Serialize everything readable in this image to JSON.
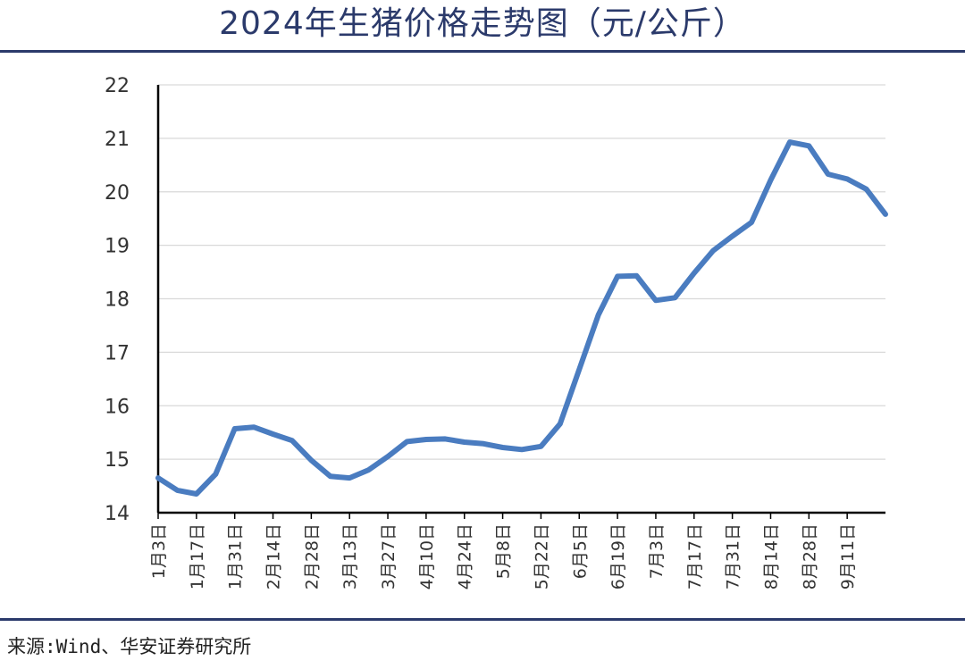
{
  "header": {
    "title": "2024年生猪价格走势图（元/公斤）"
  },
  "footer": {
    "source": "来源:Wind、华安证券研究所"
  },
  "chart_data": {
    "type": "line",
    "title": "2024年生猪价格走势图（元/公斤）",
    "xlabel": "",
    "ylabel": "",
    "ylim": [
      14,
      22
    ],
    "yticks": [
      14,
      15,
      16,
      17,
      18,
      19,
      20,
      21,
      22
    ],
    "grid": true,
    "legend": "none",
    "line_color": "#4a7cc0",
    "x_tick_labels": [
      "1月3日",
      "1月17日",
      "1月31日",
      "2月14日",
      "2月28日",
      "3月13日",
      "3月27日",
      "4月10日",
      "4月24日",
      "5月8日",
      "5月22日",
      "6月5日",
      "6月19日",
      "7月3日",
      "7月17日",
      "7月31日",
      "8月14日",
      "8月28日",
      "9月11日"
    ],
    "series": [
      {
        "values": [
          14.65,
          14.42,
          14.35,
          14.72,
          15.57,
          15.6,
          15.47,
          15.35,
          14.98,
          14.68,
          14.65,
          14.8,
          15.05,
          15.33,
          15.37,
          15.38,
          15.32,
          15.29,
          15.22,
          15.18,
          15.24,
          15.66,
          16.68,
          17.7,
          18.42,
          18.43,
          17.97,
          18.02,
          18.48,
          18.9,
          19.17,
          19.43,
          20.22,
          20.93,
          20.86,
          20.33,
          20.24,
          20.05,
          19.58
        ]
      }
    ]
  }
}
